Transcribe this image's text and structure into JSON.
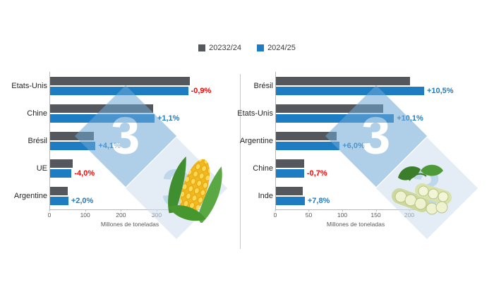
{
  "legend": {
    "items": [
      {
        "label": "20232/24",
        "color": "#54585d"
      },
      {
        "label": "2024/25",
        "color": "#1e7cc2"
      }
    ]
  },
  "watermark": {
    "text": "3",
    "color": "#7fb2d9"
  },
  "divider_color": "#c9c9c9",
  "chart_data": [
    {
      "type": "bar",
      "orientation": "horizontal",
      "icon": "corn-cob-illustration",
      "xlabel": "Millones de toneladas",
      "xticks": [
        0,
        100,
        200,
        300,
        400
      ],
      "xlim": [
        0,
        450
      ],
      "grid": false,
      "legend_position": "top-center",
      "categories": [
        "Etats-Unis",
        "Chine",
        "Brésil",
        "UE",
        "Argentine"
      ],
      "series": [
        {
          "name": "20232/24",
          "color": "#54585d",
          "values": [
            390,
            289,
            122,
            63,
            50
          ]
        },
        {
          "name": "2024/25",
          "color": "#1e7cc2",
          "values": [
            386,
            292,
            127,
            60,
            51
          ]
        }
      ],
      "annotations": [
        {
          "text": "-0,9%",
          "color": "#fe0000"
        },
        {
          "text": "+1,1%",
          "color": "#1e7cc2"
        },
        {
          "text": "+4,1%",
          "color": "#1e7cc2"
        },
        {
          "text": "-4,0%",
          "color": "#fe0000"
        },
        {
          "text": "+2,0%",
          "color": "#1e7cc2"
        }
      ]
    },
    {
      "type": "bar",
      "orientation": "horizontal",
      "icon": "soybean-illustration",
      "xlabel": "Millones de toneladas",
      "xticks": [
        0,
        50,
        100,
        150,
        200
      ],
      "xlim": [
        0,
        240
      ],
      "grid": false,
      "legend_position": "top-center",
      "categories": [
        "Brésil",
        "Etats-Unis",
        "Argentine",
        "Chine",
        "Inde"
      ],
      "series": [
        {
          "name": "20232/24",
          "color": "#54585d",
          "values": [
            200,
            160,
            90,
            42,
            40
          ]
        },
        {
          "name": "2024/25",
          "color": "#1e7cc2",
          "values": [
            221,
            176,
            95,
            42,
            43
          ]
        }
      ],
      "annotations": [
        {
          "text": "+10,5%",
          "color": "#1e7cc2"
        },
        {
          "text": "+10,1%",
          "color": "#1e7cc2"
        },
        {
          "text": "+6,0%",
          "color": "#1e7cc2"
        },
        {
          "text": "-0,7%",
          "color": "#fe0000"
        },
        {
          "text": "+7,8%",
          "color": "#1e7cc2"
        }
      ]
    }
  ]
}
